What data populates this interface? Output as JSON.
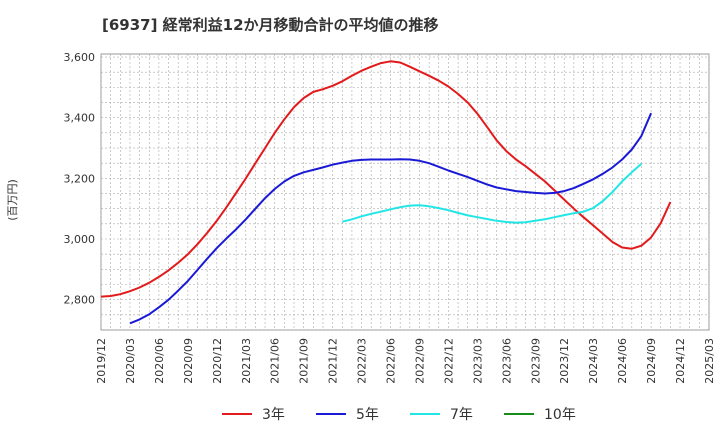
{
  "chart_data": {
    "type": "line",
    "title": "[6937]  経常利益12か月移動合計の平均値の推移",
    "ylabel": "(百万円)",
    "xlabel": "",
    "ylim": [
      2700,
      3610
    ],
    "yticks": [
      2800,
      3000,
      3200,
      3400,
      3600
    ],
    "ytick_labels": [
      "2,800",
      "3,000",
      "3,200",
      "3,400",
      "3,600"
    ],
    "xlim": [
      "2019-12",
      "2025-03"
    ],
    "xtick_labels": [
      "2019/12",
      "2020/03",
      "2020/06",
      "2020/09",
      "2020/12",
      "2021/03",
      "2021/06",
      "2021/09",
      "2021/12",
      "2022/03",
      "2022/06",
      "2022/09",
      "2022/12",
      "2023/03",
      "2023/06",
      "2023/09",
      "2023/12",
      "2024/03",
      "2024/06",
      "2024/09",
      "2024/12",
      "2025/03"
    ],
    "grid": true,
    "legend_position": "bottom",
    "series": [
      {
        "name": "3年",
        "color": "#e31a1c",
        "points": [
          [
            "2019-12",
            2810
          ],
          [
            "2020-01",
            2812
          ],
          [
            "2020-02",
            2818
          ],
          [
            "2020-03",
            2828
          ],
          [
            "2020-04",
            2840
          ],
          [
            "2020-05",
            2856
          ],
          [
            "2020-06",
            2875
          ],
          [
            "2020-07",
            2897
          ],
          [
            "2020-08",
            2922
          ],
          [
            "2020-09",
            2950
          ],
          [
            "2020-10",
            2983
          ],
          [
            "2020-11",
            3020
          ],
          [
            "2020-12",
            3060
          ],
          [
            "2021-01",
            3105
          ],
          [
            "2021-02",
            3152
          ],
          [
            "2021-03",
            3200
          ],
          [
            "2021-04",
            3250
          ],
          [
            "2021-05",
            3300
          ],
          [
            "2021-06",
            3350
          ],
          [
            "2021-07",
            3395
          ],
          [
            "2021-08",
            3435
          ],
          [
            "2021-09",
            3465
          ],
          [
            "2021-10",
            3485
          ],
          [
            "2021-11",
            3494
          ],
          [
            "2021-12",
            3505
          ],
          [
            "2022-01",
            3520
          ],
          [
            "2022-02",
            3538
          ],
          [
            "2022-03",
            3555
          ],
          [
            "2022-04",
            3568
          ],
          [
            "2022-05",
            3580
          ],
          [
            "2022-06",
            3586
          ],
          [
            "2022-07",
            3582
          ],
          [
            "2022-08",
            3568
          ],
          [
            "2022-09",
            3553
          ],
          [
            "2022-10",
            3538
          ],
          [
            "2022-11",
            3522
          ],
          [
            "2022-12",
            3503
          ],
          [
            "2023-01",
            3478
          ],
          [
            "2023-02",
            3450
          ],
          [
            "2023-03",
            3413
          ],
          [
            "2023-04",
            3370
          ],
          [
            "2023-05",
            3325
          ],
          [
            "2023-06",
            3290
          ],
          [
            "2023-07",
            3262
          ],
          [
            "2023-08",
            3240
          ],
          [
            "2023-09",
            3215
          ],
          [
            "2023-10",
            3190
          ],
          [
            "2023-11",
            3160
          ],
          [
            "2023-12",
            3130
          ],
          [
            "2024-01",
            3100
          ],
          [
            "2024-02",
            3072
          ],
          [
            "2024-03",
            3045
          ],
          [
            "2024-04",
            3018
          ],
          [
            "2024-05",
            2990
          ],
          [
            "2024-06",
            2972
          ],
          [
            "2024-07",
            2968
          ],
          [
            "2024-08",
            2978
          ],
          [
            "2024-09",
            3005
          ],
          [
            "2024-10",
            3052
          ],
          [
            "2024-11",
            3122
          ]
        ]
      },
      {
        "name": "5年",
        "color": "#1a1ad6",
        "points": [
          [
            "2020-03",
            2722
          ],
          [
            "2020-04",
            2735
          ],
          [
            "2020-05",
            2752
          ],
          [
            "2020-06",
            2775
          ],
          [
            "2020-07",
            2800
          ],
          [
            "2020-08",
            2830
          ],
          [
            "2020-09",
            2862
          ],
          [
            "2020-10",
            2898
          ],
          [
            "2020-11",
            2935
          ],
          [
            "2020-12",
            2970
          ],
          [
            "2021-01",
            3002
          ],
          [
            "2021-02",
            3032
          ],
          [
            "2021-03",
            3065
          ],
          [
            "2021-04",
            3100
          ],
          [
            "2021-05",
            3135
          ],
          [
            "2021-06",
            3165
          ],
          [
            "2021-07",
            3190
          ],
          [
            "2021-08",
            3208
          ],
          [
            "2021-09",
            3220
          ],
          [
            "2021-10",
            3228
          ],
          [
            "2021-11",
            3236
          ],
          [
            "2021-12",
            3245
          ],
          [
            "2022-01",
            3252
          ],
          [
            "2022-02",
            3258
          ],
          [
            "2022-03",
            3261
          ],
          [
            "2022-04",
            3262
          ],
          [
            "2022-05",
            3262
          ],
          [
            "2022-06",
            3262
          ],
          [
            "2022-07",
            3263
          ],
          [
            "2022-08",
            3262
          ],
          [
            "2022-09",
            3258
          ],
          [
            "2022-10",
            3250
          ],
          [
            "2022-11",
            3238
          ],
          [
            "2022-12",
            3226
          ],
          [
            "2023-01",
            3215
          ],
          [
            "2023-02",
            3204
          ],
          [
            "2023-03",
            3192
          ],
          [
            "2023-04",
            3180
          ],
          [
            "2023-05",
            3170
          ],
          [
            "2023-06",
            3164
          ],
          [
            "2023-07",
            3158
          ],
          [
            "2023-08",
            3155
          ],
          [
            "2023-09",
            3152
          ],
          [
            "2023-10",
            3150
          ],
          [
            "2023-11",
            3152
          ],
          [
            "2023-12",
            3158
          ],
          [
            "2024-01",
            3168
          ],
          [
            "2024-02",
            3182
          ],
          [
            "2024-03",
            3197
          ],
          [
            "2024-04",
            3215
          ],
          [
            "2024-05",
            3236
          ],
          [
            "2024-06",
            3262
          ],
          [
            "2024-07",
            3295
          ],
          [
            "2024-08",
            3340
          ],
          [
            "2024-09",
            3415
          ]
        ]
      },
      {
        "name": "7年",
        "color": "#22e6e6",
        "points": [
          [
            "2022-01",
            3057
          ],
          [
            "2022-02",
            3065
          ],
          [
            "2022-03",
            3075
          ],
          [
            "2022-04",
            3083
          ],
          [
            "2022-05",
            3090
          ],
          [
            "2022-06",
            3098
          ],
          [
            "2022-07",
            3105
          ],
          [
            "2022-08",
            3110
          ],
          [
            "2022-09",
            3111
          ],
          [
            "2022-10",
            3108
          ],
          [
            "2022-11",
            3102
          ],
          [
            "2022-12",
            3095
          ],
          [
            "2023-01",
            3086
          ],
          [
            "2023-02",
            3078
          ],
          [
            "2023-03",
            3072
          ],
          [
            "2023-04",
            3066
          ],
          [
            "2023-05",
            3060
          ],
          [
            "2023-06",
            3056
          ],
          [
            "2023-07",
            3054
          ],
          [
            "2023-08",
            3055
          ],
          [
            "2023-09",
            3060
          ],
          [
            "2023-10",
            3065
          ],
          [
            "2023-11",
            3072
          ],
          [
            "2023-12",
            3079
          ],
          [
            "2024-01",
            3085
          ],
          [
            "2024-02",
            3090
          ],
          [
            "2024-03",
            3102
          ],
          [
            "2024-04",
            3125
          ],
          [
            "2024-05",
            3155
          ],
          [
            "2024-06",
            3190
          ],
          [
            "2024-07",
            3220
          ],
          [
            "2024-08",
            3248
          ]
        ]
      },
      {
        "name": "10年",
        "color": "#1a8c1a",
        "points": []
      }
    ]
  }
}
